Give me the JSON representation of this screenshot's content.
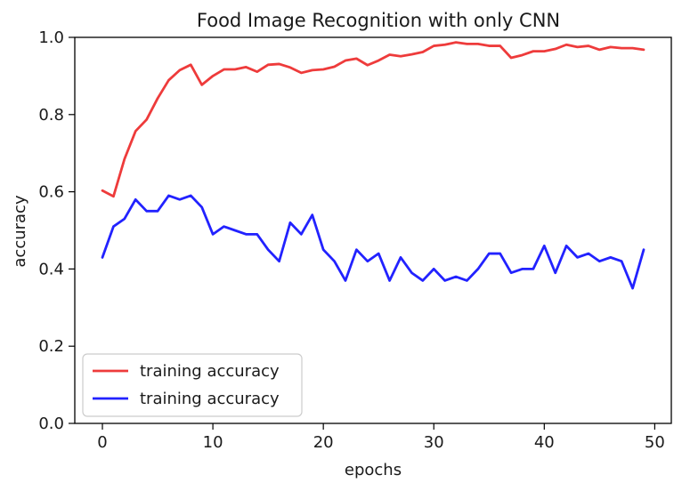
{
  "chart_data": {
    "type": "line",
    "title": "Food Image Recognition with only CNN",
    "xlabel": "epochs",
    "ylabel": "accuracy",
    "xlim": [
      -2.5,
      51.5
    ],
    "ylim": [
      0.0,
      1.0
    ],
    "xticks": [
      0,
      10,
      20,
      30,
      40,
      50
    ],
    "yticks": [
      0.0,
      0.2,
      0.4,
      0.6,
      0.8,
      1.0
    ],
    "xtick_labels": [
      "0",
      "10",
      "20",
      "30",
      "40",
      "50"
    ],
    "ytick_labels": [
      "0.0",
      "0.2",
      "0.4",
      "0.6",
      "0.8",
      "1.0"
    ],
    "grid": false,
    "legend_position": "lower-left",
    "x": [
      0,
      1,
      2,
      3,
      4,
      5,
      6,
      7,
      8,
      9,
      10,
      11,
      12,
      13,
      14,
      15,
      16,
      17,
      18,
      19,
      20,
      21,
      22,
      23,
      24,
      25,
      26,
      27,
      28,
      29,
      30,
      31,
      32,
      33,
      34,
      35,
      36,
      37,
      38,
      39,
      40,
      41,
      42,
      43,
      44,
      45,
      46,
      47,
      48,
      49
    ],
    "series": [
      {
        "name": "training accuracy",
        "color": "#ee3b3b",
        "values": [
          0.603,
          0.588,
          0.685,
          0.757,
          0.787,
          0.842,
          0.889,
          0.915,
          0.929,
          0.877,
          0.9,
          0.917,
          0.917,
          0.923,
          0.911,
          0.929,
          0.931,
          0.922,
          0.908,
          0.915,
          0.917,
          0.924,
          0.94,
          0.945,
          0.928,
          0.94,
          0.955,
          0.951,
          0.956,
          0.962,
          0.978,
          0.981,
          0.987,
          0.983,
          0.983,
          0.978,
          0.978,
          0.947,
          0.954,
          0.964,
          0.964,
          0.97,
          0.981,
          0.975,
          0.978,
          0.968,
          0.975,
          0.972,
          0.972,
          0.968
        ]
      },
      {
        "name": "training accuracy",
        "color": "#2222ff",
        "values": [
          0.43,
          0.51,
          0.53,
          0.58,
          0.55,
          0.55,
          0.59,
          0.58,
          0.59,
          0.56,
          0.49,
          0.51,
          0.5,
          0.49,
          0.49,
          0.45,
          0.42,
          0.52,
          0.49,
          0.54,
          0.45,
          0.42,
          0.37,
          0.45,
          0.42,
          0.44,
          0.37,
          0.43,
          0.39,
          0.37,
          0.4,
          0.37,
          0.38,
          0.37,
          0.4,
          0.44,
          0.44,
          0.39,
          0.4,
          0.4,
          0.46,
          0.39,
          0.46,
          0.43,
          0.44,
          0.42,
          0.43,
          0.42,
          0.35,
          0.45
        ]
      }
    ]
  }
}
